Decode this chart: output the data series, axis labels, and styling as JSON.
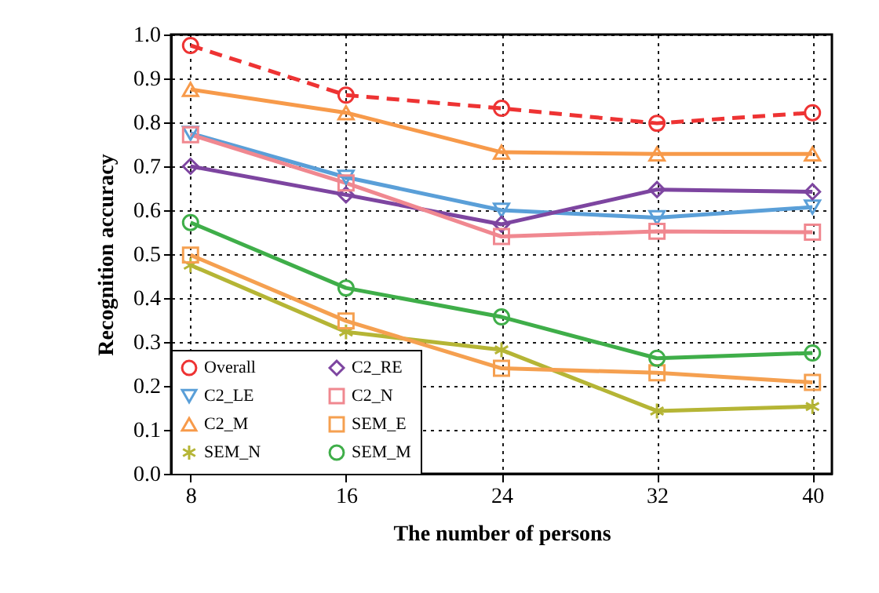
{
  "chart_data": {
    "type": "line",
    "xlabel": "The number of persons",
    "ylabel": "Recognition accuracy",
    "x": [
      8,
      16,
      24,
      32,
      40
    ],
    "xlim": [
      7,
      41
    ],
    "xticks": [
      8,
      16,
      24,
      32,
      40
    ],
    "ylim": [
      0,
      1
    ],
    "yticks": [
      {
        "value": 0,
        "label": "0.0"
      },
      {
        "value": 0.1,
        "label": "0.1"
      },
      {
        "value": 0.2,
        "label": "0.2"
      },
      {
        "value": 0.3,
        "label": "0.3"
      },
      {
        "value": 0.4,
        "label": "0.4"
      },
      {
        "value": 0.5,
        "label": "0.5"
      },
      {
        "value": 0.6,
        "label": "0.6"
      },
      {
        "value": 0.7,
        "label": "0.7"
      },
      {
        "value": 0.8,
        "label": "0.8"
      },
      {
        "value": 0.9,
        "label": "0.9"
      },
      {
        "value": 1,
        "label": "1.0"
      }
    ],
    "grid": true,
    "legend": "bottom left",
    "series": [
      {
        "name": "Overall",
        "color": "#ee3333",
        "marker": "circle",
        "line_style": "dashed",
        "values": [
          0.975,
          0.862,
          0.832,
          0.798,
          0.822
        ]
      },
      {
        "name": "C2_LE",
        "color": "#5a9fd8",
        "marker": "triangle-down",
        "line_style": "solid",
        "values": [
          0.775,
          0.675,
          0.6,
          0.583,
          0.607
        ]
      },
      {
        "name": "C2_M",
        "color": "#f79a4a",
        "marker": "triangle",
        "line_style": "solid",
        "values": [
          0.875,
          0.822,
          0.732,
          0.728,
          0.728
        ]
      },
      {
        "name": "SEM_N",
        "color": "#b5b535",
        "marker": "cross",
        "line_style": "solid",
        "values": [
          0.475,
          0.323,
          0.282,
          0.143,
          0.153
        ]
      },
      {
        "name": "C2_RE",
        "color": "#7d45a0",
        "marker": "diamond",
        "line_style": "solid",
        "values": [
          0.7,
          0.635,
          0.568,
          0.647,
          0.642
        ]
      },
      {
        "name": "C2_N",
        "color": "#f08890",
        "marker": "square",
        "line_style": "solid",
        "values": [
          0.772,
          0.662,
          0.54,
          0.552,
          0.55
        ]
      },
      {
        "name": "SEM_E",
        "color": "#f5a050",
        "marker": "square",
        "line_style": "solid",
        "values": [
          0.498,
          0.348,
          0.24,
          0.23,
          0.208
        ]
      },
      {
        "name": "SEM_M",
        "color": "#3fae49",
        "marker": "circle",
        "line_style": "solid",
        "values": [
          0.572,
          0.423,
          0.357,
          0.263,
          0.275
        ]
      }
    ]
  }
}
